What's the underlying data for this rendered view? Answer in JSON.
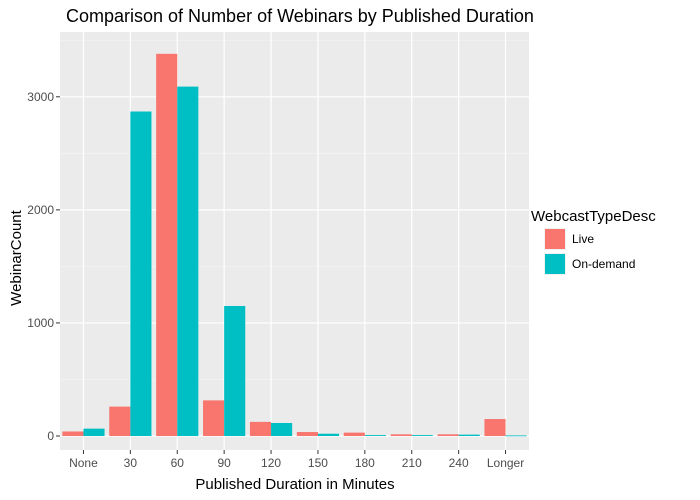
{
  "chart_data": {
    "type": "bar",
    "title": "Comparison of Number of Webinars by Published Duration",
    "xlabel": "Published Duration in Minutes",
    "ylabel": "WebinarCount",
    "categories": [
      "None",
      "30",
      "60",
      "90",
      "120",
      "150",
      "180",
      "210",
      "240",
      "Longer"
    ],
    "series": [
      {
        "name": "Live",
        "color": "#f8766d",
        "values": [
          40,
          260,
          3380,
          315,
          125,
          35,
          30,
          15,
          15,
          150
        ]
      },
      {
        "name": "On-demand",
        "color": "#00bfc4",
        "values": [
          65,
          2870,
          3090,
          1150,
          115,
          20,
          8,
          8,
          12,
          5
        ]
      }
    ],
    "ylim": [
      0,
      3520
    ],
    "yticks": [
      0,
      1000,
      2000,
      3000
    ],
    "grid": true,
    "panel_background": "#ebebeb",
    "legend": {
      "title": "WebcastTypeDesc",
      "position": "right"
    }
  }
}
